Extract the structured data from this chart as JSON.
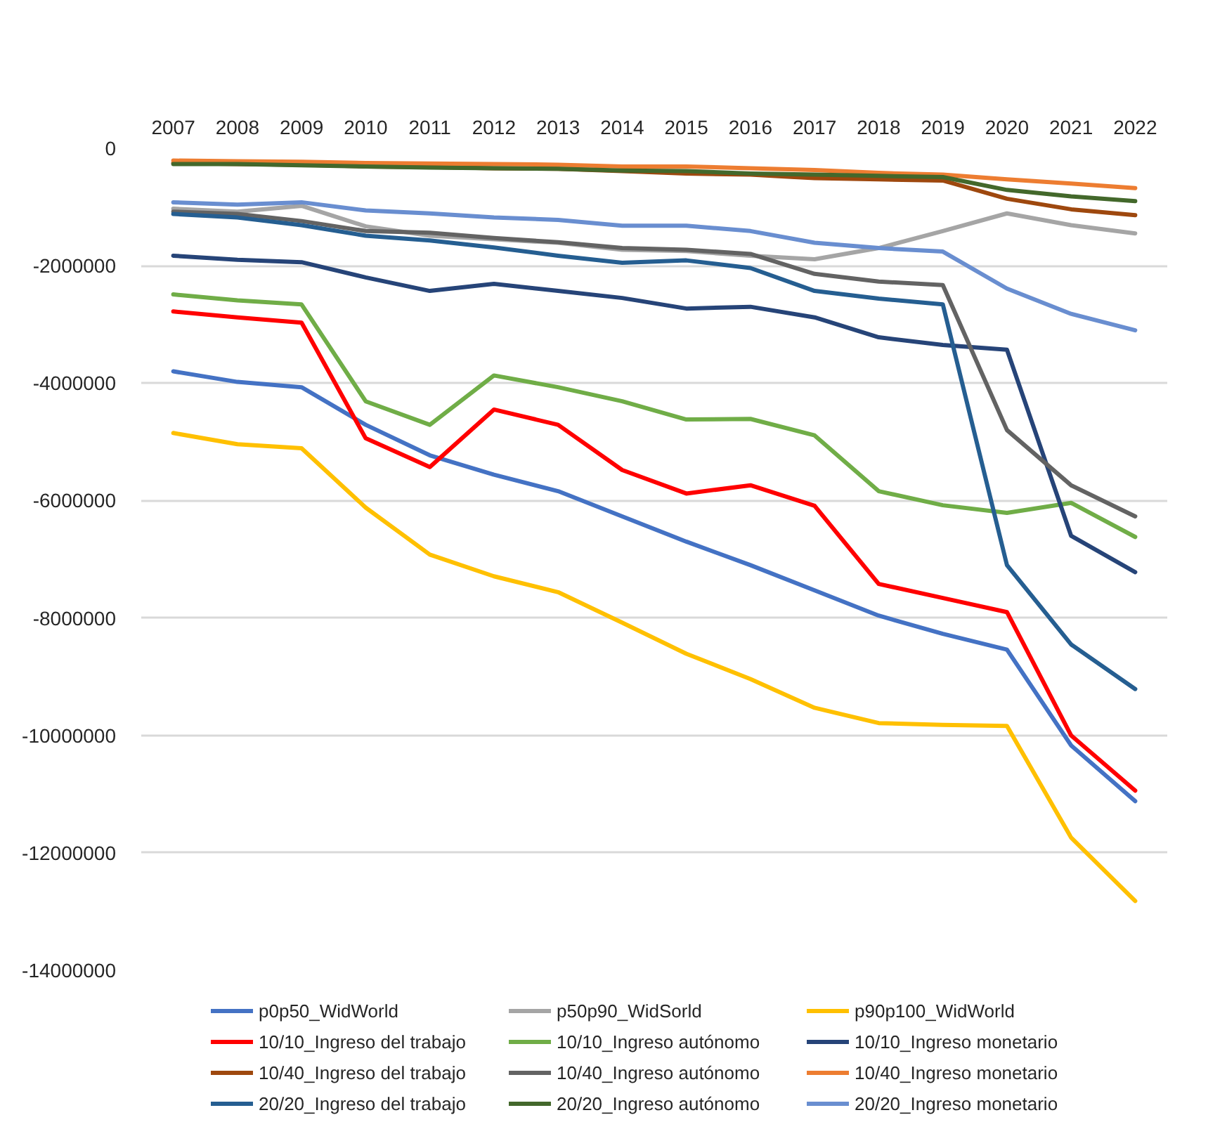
{
  "chart_data": {
    "type": "line",
    "categories": [
      "2007",
      "2008",
      "2009",
      "2010",
      "2011",
      "2012",
      "2013",
      "2014",
      "2015",
      "2016",
      "2017",
      "2018",
      "2019",
      "2020",
      "2021",
      "2022"
    ],
    "series": [
      {
        "name": "p0p50_WidWorld",
        "color": "#4472c4",
        "values": [
          -3800000,
          -3980000,
          -4070000,
          -4710000,
          -5230000,
          -5560000,
          -5840000,
          -6270000,
          -6700000,
          -7100000,
          -7530000,
          -7960000,
          -8270000,
          -8540000,
          -10170000,
          -11120000
        ]
      },
      {
        "name": "p50p90_WidSorld",
        "color": "#a5a5a5",
        "values": [
          -1030000,
          -1080000,
          -980000,
          -1330000,
          -1490000,
          -1550000,
          -1610000,
          -1730000,
          -1750000,
          -1830000,
          -1890000,
          -1700000,
          -1410000,
          -1110000,
          -1310000,
          -1450000
        ]
      },
      {
        "name": "p90p100_WidWorld",
        "color": "#ffc000",
        "values": [
          -4850000,
          -5040000,
          -5110000,
          -6120000,
          -6920000,
          -7290000,
          -7560000,
          -8080000,
          -8610000,
          -9040000,
          -9530000,
          -9790000,
          -9820000,
          -9840000,
          -11740000,
          -12820000
        ]
      },
      {
        "name": "10/10_Ingreso del trabajo",
        "color": "#ff0000",
        "values": [
          -2780000,
          -2880000,
          -2970000,
          -4940000,
          -5430000,
          -4450000,
          -4710000,
          -5480000,
          -5880000,
          -5740000,
          -6090000,
          -7420000,
          -7660000,
          -7900000,
          -10000000,
          -10940000
        ]
      },
      {
        "name": "10/10_Ingreso autónomo",
        "color": "#70ad47",
        "values": [
          -2490000,
          -2590000,
          -2660000,
          -4310000,
          -4710000,
          -3870000,
          -4070000,
          -4310000,
          -4620000,
          -4610000,
          -4890000,
          -5840000,
          -6080000,
          -6210000,
          -6040000,
          -6620000
        ]
      },
      {
        "name": "10/10_Ingreso monetario",
        "color": "#264478",
        "values": [
          -1830000,
          -1900000,
          -1940000,
          -2200000,
          -2430000,
          -2310000,
          -2430000,
          -2550000,
          -2730000,
          -2700000,
          -2880000,
          -3220000,
          -3350000,
          -3430000,
          -6600000,
          -7220000
        ]
      },
      {
        "name": "10/40_Ingreso del trabajo",
        "color": "#9e480e",
        "values": [
          -250000,
          -270000,
          -280000,
          -310000,
          -320000,
          -340000,
          -350000,
          -390000,
          -430000,
          -450000,
          -510000,
          -530000,
          -550000,
          -860000,
          -1040000,
          -1140000
        ]
      },
      {
        "name": "10/40_Ingreso autónomo",
        "color": "#636363",
        "values": [
          -1080000,
          -1120000,
          -1240000,
          -1410000,
          -1440000,
          -1530000,
          -1600000,
          -1700000,
          -1730000,
          -1800000,
          -2140000,
          -2270000,
          -2330000,
          -4800000,
          -5740000,
          -6270000
        ]
      },
      {
        "name": "10/40_Ingreso monetario",
        "color": "#ed7d31",
        "values": [
          -210000,
          -220000,
          -230000,
          -250000,
          -260000,
          -270000,
          -280000,
          -310000,
          -310000,
          -340000,
          -370000,
          -420000,
          -450000,
          -530000,
          -600000,
          -680000
        ]
      },
      {
        "name": "20/20_Ingreso del trabajo",
        "color": "#255e91",
        "values": [
          -1120000,
          -1180000,
          -1310000,
          -1490000,
          -1570000,
          -1690000,
          -1830000,
          -1950000,
          -1910000,
          -2040000,
          -2430000,
          -2560000,
          -2660000,
          -7100000,
          -8450000,
          -9210000
        ]
      },
      {
        "name": "20/20_Ingreso autónomo",
        "color": "#43682b",
        "values": [
          -270000,
          -270000,
          -290000,
          -310000,
          -330000,
          -340000,
          -350000,
          -380000,
          -390000,
          -430000,
          -450000,
          -470000,
          -490000,
          -710000,
          -820000,
          -900000
        ]
      },
      {
        "name": "20/20_Ingreso monetario",
        "color": "#698ed0",
        "values": [
          -920000,
          -960000,
          -920000,
          -1060000,
          -1110000,
          -1180000,
          -1220000,
          -1320000,
          -1320000,
          -1410000,
          -1610000,
          -1700000,
          -1760000,
          -2390000,
          -2820000,
          -3100000
        ]
      }
    ],
    "ylim": [
      -14000000,
      0
    ],
    "yticks": [
      0,
      -2000000,
      -4000000,
      -6000000,
      -8000000,
      -10000000,
      -12000000,
      -14000000
    ],
    "grid": "y",
    "legend": "bottom",
    "marker": "none",
    "line_style": "solid"
  }
}
